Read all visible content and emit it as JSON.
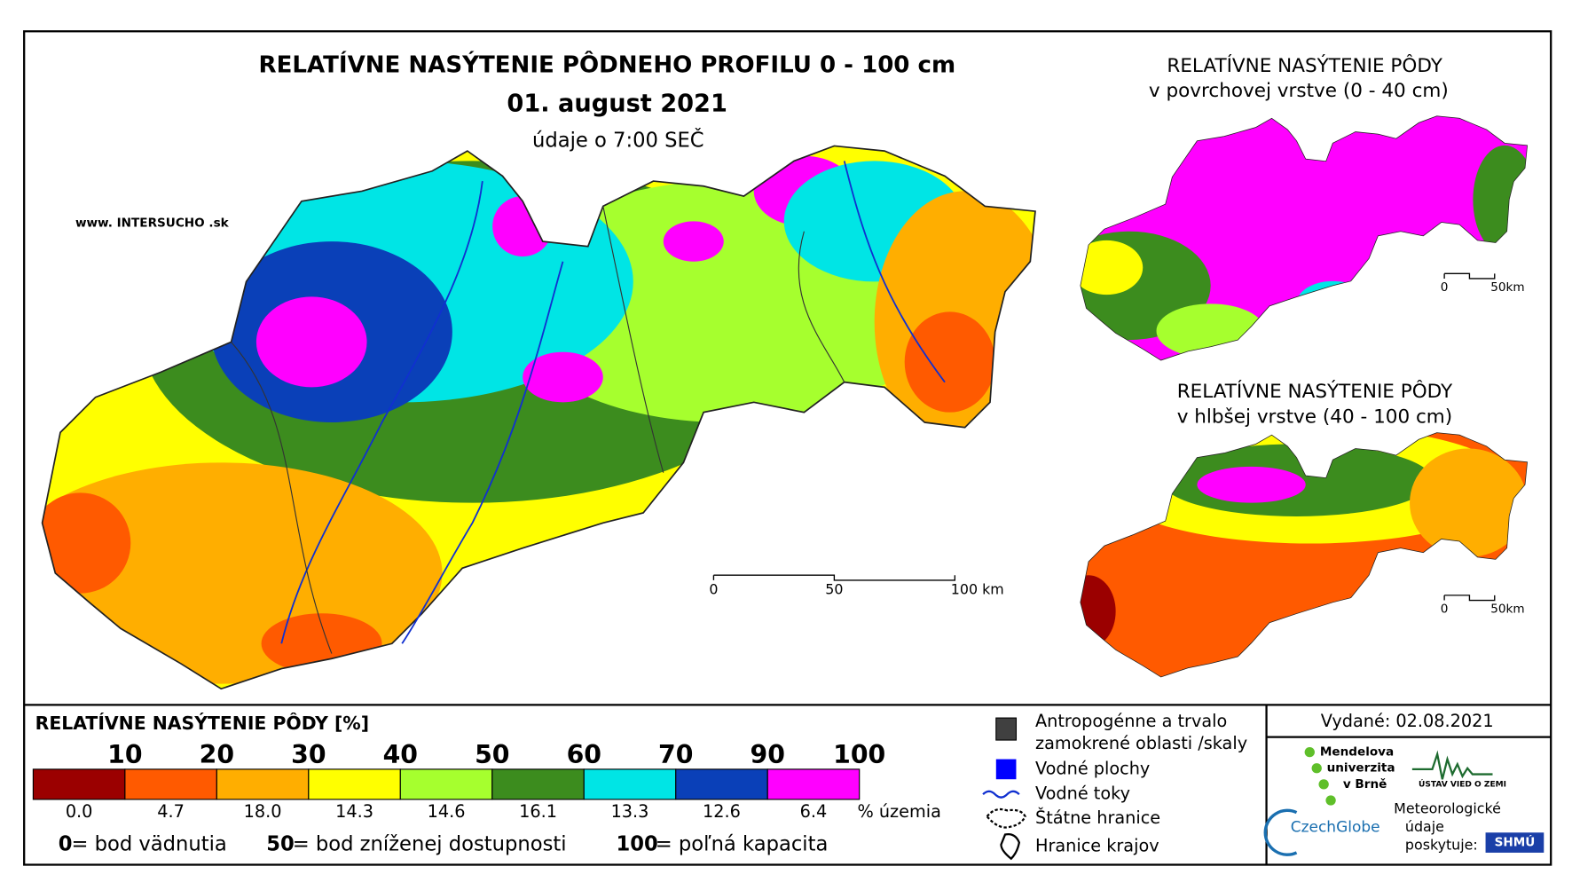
{
  "main_map": {
    "title": "RELATÍVNE NASÝTENIE PÔDNEHO PROFILU 0 - 100 cm",
    "date": "01. august 2021",
    "time_note": "údaje o 7:00 SEČ",
    "website": "www. INTERSUCHO .sk",
    "scale_bar": {
      "ticks": [
        0,
        50,
        {
          "value": 100,
          "label": "100 km"
        }
      ]
    }
  },
  "inset_surface": {
    "title": [
      "RELATÍVNE NASÝTENIE PÔDY",
      "v povrchovej vrstve (0 - 40 cm)"
    ],
    "scale_bar": {
      "ticks": [
        0,
        {
          "value": 50,
          "label": "50km"
        }
      ]
    }
  },
  "inset_deep": {
    "title": [
      "RELATÍVNE NASÝTENIE PÔDY",
      "v hlbšej vrstve (40 - 100 cm)"
    ],
    "scale_bar": {
      "ticks": [
        0,
        {
          "value": 50,
          "label": "50km"
        }
      ]
    }
  },
  "legend": {
    "title": "RELATÍVNE NASÝTENIE PÔDY [%]",
    "thresholds": [
      10,
      20,
      30,
      40,
      50,
      60,
      70,
      90,
      100
    ],
    "colors": [
      "#9b0000",
      "#ff5a00",
      "#ffae00",
      "#ffff00",
      "#a6ff2e",
      "#3c8c1e",
      "#00e5e5",
      "#0a40b8",
      "#ff00ff"
    ],
    "shares": [
      {
        "value": 0,
        "label": "0.0"
      },
      4.7,
      {
        "value": 18,
        "label": "18.0"
      },
      14.3,
      14.6,
      16.1,
      13.3,
      12.6,
      6.4
    ],
    "share_unit": "% územia",
    "notes": [
      {
        "value": 0,
        "text": "= bod vädnutia"
      },
      {
        "value": 50,
        "text": "= bod zníženej dostupnosti"
      },
      {
        "value": 100,
        "text": "= poľná kapacita"
      }
    ]
  },
  "symbols": [
    {
      "label": [
        "Antropogénne a trvalo",
        "zamokrené oblasti /skaly"
      ]
    },
    {
      "label": [
        "Vodné plochy"
      ]
    },
    {
      "label": [
        "Vodné toky"
      ]
    },
    {
      "label": [
        "Štátne hranice"
      ]
    },
    {
      "label": [
        "Hranice krajov"
      ]
    }
  ],
  "issued": "Vydané: 02.08.2021",
  "credits": {
    "mendel": [
      "Mendelova",
      "univerzita",
      "v Brně"
    ],
    "czechglobe": "CzechGlobe",
    "uvz": "ÚSTAV VIED O ZEMI",
    "meteo": [
      "Meteorologické",
      "údaje",
      "poskytuje:"
    ],
    "shmu": "SHMÚ"
  }
}
